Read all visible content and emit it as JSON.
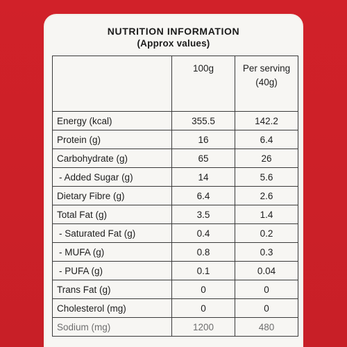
{
  "header": {
    "title": "NUTRITION INFORMATION",
    "subtitle": "(Approx values)"
  },
  "columns": {
    "per100": "100g",
    "per_serving_line1": "Per serving",
    "per_serving_line2": "(40g)"
  },
  "rows": [
    {
      "label": "Energy (kcal)",
      "per100": "355.5",
      "serving": "142.2"
    },
    {
      "label": "Protein (g)",
      "per100": "16",
      "serving": "6.4"
    },
    {
      "label": "Carbohydrate (g)",
      "per100": "65",
      "serving": "26"
    },
    {
      "label": "- Added Sugar (g)",
      "per100": "14",
      "serving": "5.6"
    },
    {
      "label": "Dietary Fibre (g)",
      "per100": "6.4",
      "serving": "2.6"
    },
    {
      "label": "Total Fat (g)",
      "per100": "3.5",
      "serving": "1.4"
    },
    {
      "label": "- Saturated Fat (g)",
      "per100": "0.4",
      "serving": "0.2"
    },
    {
      "label": "- MUFA (g)",
      "per100": "0.8",
      "serving": "0.3"
    },
    {
      "label": "- PUFA (g)",
      "per100": "0.1",
      "serving": "0.04"
    },
    {
      "label": "Trans Fat (g)",
      "per100": "0",
      "serving": "0"
    },
    {
      "label": "Cholesterol (mg)",
      "per100": "0",
      "serving": "0"
    },
    {
      "label": "Sodium (mg)",
      "per100": "1200",
      "serving": "480"
    }
  ],
  "colors": {
    "background": "#d0232b",
    "panel": "#f7f6f3",
    "text": "#1d1d1d"
  }
}
